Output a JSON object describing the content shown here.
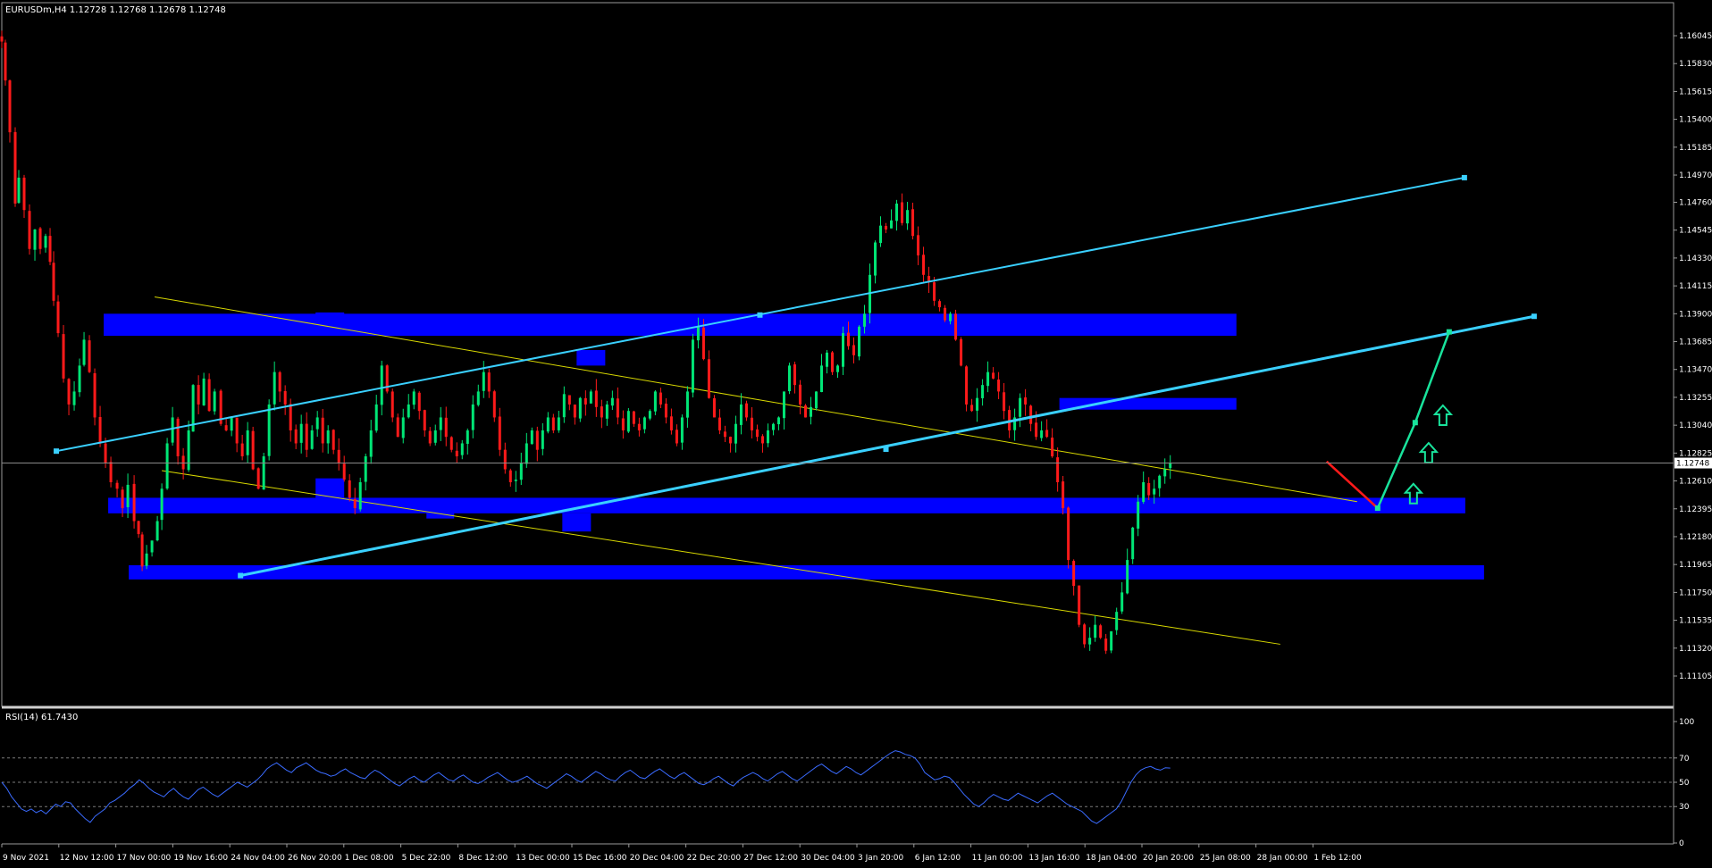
{
  "header": {
    "main_info": "EURUSDm,H4  1.12728 1.12768 1.12678 1.12748",
    "rsi_info": "RSI(14) 61.7430"
  },
  "colors": {
    "background": "#000000",
    "bull_candle": "#00e676",
    "bear_candle": "#ff1a1a",
    "zone": "#0000ff",
    "channel": "#3ad0ff",
    "trend_thin": "#d8d800",
    "forecast_up": "#19e39c",
    "forecast_down": "#ff1a1a",
    "rsi_line": "#3a6bff",
    "axis_text": "#ffffff",
    "grid": "#7a7a7a"
  },
  "chart_data": [
    {
      "type": "candlestick",
      "symbol": "EURUSDm",
      "timeframe": "H4",
      "ohlc_current": {
        "open": 1.12728,
        "high": 1.12768,
        "low": 1.12678,
        "close": 1.12748
      },
      "current_price_label": "1.12748",
      "y_ticks": [
        "1.16045",
        "1.15830",
        "1.15615",
        "1.15400",
        "1.15185",
        "1.14970",
        "1.14760",
        "1.14545",
        "1.14330",
        "1.14115",
        "1.13900",
        "1.13685",
        "1.13470",
        "1.13255",
        "1.13040",
        "1.12825",
        "1.12610",
        "1.12395",
        "1.12180",
        "1.11965",
        "1.11750",
        "1.11535",
        "1.11320",
        "1.11105"
      ],
      "ylim": [
        1.11105,
        1.16045
      ],
      "x_ticks": [
        "9 Nov 2021",
        "12 Nov 12:00",
        "17 Nov 00:00",
        "19 Nov 16:00",
        "24 Nov 04:00",
        "26 Nov 20:00",
        "1 Dec 08:00",
        "5 Dec 22:00",
        "8 Dec 12:00",
        "13 Dec 00:00",
        "15 Dec 16:00",
        "20 Dec 04:00",
        "22 Dec 20:00",
        "27 Dec 12:00",
        "30 Dec 04:00",
        "3 Jan 20:00",
        "6 Jan 12:00",
        "11 Jan 00:00",
        "13 Jan 16:00",
        "18 Jan 04:00",
        "20 Jan 20:00",
        "25 Jan 08:00",
        "28 Jan 00:00",
        "1 Feb 12:00"
      ],
      "close_path": [
        [
          0,
          1.16
        ],
        [
          4,
          1.157
        ],
        [
          9,
          1.153
        ],
        [
          15,
          1.1475
        ],
        [
          19,
          1.1495
        ],
        [
          25,
          1.147
        ],
        [
          31,
          1.144
        ],
        [
          37,
          1.1455
        ],
        [
          43,
          1.144
        ],
        [
          49,
          1.145
        ],
        [
          54,
          1.143
        ],
        [
          58,
          1.14
        ],
        [
          63,
          1.1375
        ],
        [
          69,
          1.134
        ],
        [
          75,
          1.132
        ],
        [
          81,
          1.133
        ],
        [
          87,
          1.135
        ],
        [
          92,
          1.137
        ],
        [
          98,
          1.1345
        ],
        [
          104,
          1.131
        ],
        [
          110,
          1.129
        ],
        [
          116,
          1.1275
        ],
        [
          122,
          1.126
        ],
        [
          129,
          1.1255
        ],
        [
          135,
          1.124
        ],
        [
          141,
          1.1258
        ],
        [
          148,
          1.123
        ],
        [
          153,
          1.122
        ],
        [
          157,
          1.1195
        ],
        [
          162,
          1.1205
        ],
        [
          168,
          1.1215
        ],
        [
          174,
          1.123
        ],
        [
          179,
          1.1255
        ],
        [
          185,
          1.129
        ],
        [
          191,
          1.131
        ],
        [
          197,
          1.128
        ],
        [
          203,
          1.127
        ],
        [
          209,
          1.13
        ],
        [
          214,
          1.1335
        ],
        [
          220,
          1.132
        ],
        [
          226,
          1.134
        ],
        [
          232,
          1.1315
        ],
        [
          238,
          1.133
        ],
        [
          245,
          1.1305
        ],
        [
          251,
          1.13
        ],
        [
          257,
          1.131
        ],
        [
          263,
          1.129
        ],
        [
          269,
          1.128
        ],
        [
          275,
          1.13
        ],
        [
          281,
          1.127
        ],
        [
          287,
          1.1255
        ],
        [
          293,
          1.128
        ],
        [
          299,
          1.132
        ],
        [
          305,
          1.1345
        ],
        [
          311,
          1.133
        ],
        [
          317,
          1.132
        ],
        [
          323,
          1.13
        ],
        [
          329,
          1.129
        ],
        [
          335,
          1.1305
        ],
        [
          341,
          1.1285
        ],
        [
          347,
          1.13
        ],
        [
          353,
          1.131
        ],
        [
          359,
          1.129
        ],
        [
          365,
          1.13
        ],
        [
          371,
          1.1285
        ],
        [
          377,
          1.1275
        ],
        [
          383,
          1.1262
        ],
        [
          389,
          1.1248
        ],
        [
          395,
          1.124
        ],
        [
          401,
          1.126
        ],
        [
          407,
          1.128
        ],
        [
          413,
          1.13
        ],
        [
          419,
          1.132
        ],
        [
          425,
          1.135
        ],
        [
          431,
          1.133
        ],
        [
          437,
          1.131
        ],
        [
          443,
          1.1295
        ],
        [
          449,
          1.131
        ],
        [
          455,
          1.132
        ],
        [
          461,
          1.133
        ],
        [
          467,
          1.1315
        ],
        [
          473,
          1.13
        ],
        [
          479,
          1.129
        ],
        [
          485,
          1.13
        ],
        [
          491,
          1.131
        ],
        [
          497,
          1.1295
        ],
        [
          503,
          1.1285
        ],
        [
          509,
          1.128
        ],
        [
          515,
          1.129
        ],
        [
          521,
          1.13
        ],
        [
          527,
          1.132
        ],
        [
          533,
          1.133
        ],
        [
          539,
          1.1345
        ],
        [
          545,
          1.133
        ],
        [
          551,
          1.131
        ],
        [
          557,
          1.1285
        ],
        [
          563,
          1.127
        ],
        [
          569,
          1.126
        ],
        [
          575,
          1.1262
        ],
        [
          581,
          1.1275
        ],
        [
          587,
          1.129
        ],
        [
          593,
          1.13
        ],
        [
          599,
          1.1285
        ],
        [
          605,
          1.13
        ],
        [
          611,
          1.131
        ],
        [
          617,
          1.13
        ],
        [
          623,
          1.131
        ],
        [
          629,
          1.1328
        ],
        [
          635,
          1.132
        ],
        [
          641,
          1.131
        ],
        [
          647,
          1.1325
        ],
        [
          653,
          1.132
        ],
        [
          659,
          1.133
        ],
        [
          665,
          1.1318
        ],
        [
          671,
          1.131
        ],
        [
          677,
          1.132
        ],
        [
          683,
          1.1325
        ],
        [
          689,
          1.131
        ],
        [
          695,
          1.13
        ],
        [
          701,
          1.1315
        ],
        [
          707,
          1.1305
        ],
        [
          713,
          1.13
        ],
        [
          719,
          1.131
        ],
        [
          725,
          1.1315
        ],
        [
          731,
          1.133
        ],
        [
          737,
          1.132
        ],
        [
          743,
          1.131
        ],
        [
          749,
          1.13
        ],
        [
          755,
          1.129
        ],
        [
          761,
          1.131
        ],
        [
          767,
          1.133
        ],
        [
          773,
          1.137
        ],
        [
          779,
          1.138
        ],
        [
          785,
          1.1355
        ],
        [
          791,
          1.1325
        ],
        [
          797,
          1.131
        ],
        [
          803,
          1.13
        ],
        [
          809,
          1.1295
        ],
        [
          815,
          1.129
        ],
        [
          821,
          1.1305
        ],
        [
          827,
          1.132
        ],
        [
          833,
          1.131
        ],
        [
          839,
          1.13
        ],
        [
          845,
          1.1295
        ],
        [
          851,
          1.129
        ],
        [
          857,
          1.13
        ],
        [
          863,
          1.1305
        ],
        [
          869,
          1.131
        ],
        [
          875,
          1.133
        ],
        [
          881,
          1.135
        ],
        [
          887,
          1.1335
        ],
        [
          893,
          1.132
        ],
        [
          899,
          1.131
        ],
        [
          905,
          1.1318
        ],
        [
          911,
          1.133
        ],
        [
          917,
          1.135
        ],
        [
          923,
          1.136
        ],
        [
          929,
          1.1345
        ],
        [
          935,
          1.135
        ],
        [
          941,
          1.1375
        ],
        [
          947,
          1.1365
        ],
        [
          953,
          1.1358
        ],
        [
          959,
          1.138
        ],
        [
          965,
          1.139
        ],
        [
          971,
          1.142
        ],
        [
          977,
          1.1445
        ],
        [
          983,
          1.1458
        ],
        [
          989,
          1.1455
        ],
        [
          995,
          1.1462
        ],
        [
          1001,
          1.1475
        ],
        [
          1007,
          1.146
        ],
        [
          1013,
          1.147
        ],
        [
          1019,
          1.145
        ],
        [
          1025,
          1.1435
        ],
        [
          1031,
          1.142
        ],
        [
          1037,
          1.1415
        ],
        [
          1043,
          1.14
        ],
        [
          1049,
          1.1395
        ],
        [
          1055,
          1.1385
        ],
        [
          1061,
          1.139
        ],
        [
          1067,
          1.137
        ],
        [
          1073,
          1.135
        ],
        [
          1079,
          1.132
        ],
        [
          1085,
          1.1315
        ],
        [
          1091,
          1.1325
        ],
        [
          1097,
          1.1335
        ],
        [
          1103,
          1.1345
        ],
        [
          1109,
          1.134
        ],
        [
          1115,
          1.133
        ],
        [
          1121,
          1.1315
        ],
        [
          1127,
          1.13
        ],
        [
          1133,
          1.131
        ],
        [
          1139,
          1.1325
        ],
        [
          1145,
          1.132
        ],
        [
          1151,
          1.1305
        ],
        [
          1157,
          1.1295
        ],
        [
          1163,
          1.13
        ],
        [
          1169,
          1.1295
        ],
        [
          1175,
          1.128
        ],
        [
          1181,
          1.126
        ],
        [
          1187,
          1.124
        ],
        [
          1193,
          1.12
        ],
        [
          1199,
          1.118
        ],
        [
          1205,
          1.115
        ],
        [
          1211,
          1.1135
        ],
        [
          1217,
          1.114
        ],
        [
          1223,
          1.115
        ],
        [
          1229,
          1.114
        ],
        [
          1235,
          1.113
        ],
        [
          1241,
          1.1145
        ],
        [
          1247,
          1.116
        ],
        [
          1253,
          1.1175
        ],
        [
          1259,
          1.12
        ],
        [
          1265,
          1.1225
        ],
        [
          1271,
          1.1245
        ],
        [
          1277,
          1.126
        ],
        [
          1283,
          1.125
        ],
        [
          1289,
          1.1255
        ],
        [
          1295,
          1.1265
        ],
        [
          1301,
          1.127
        ],
        [
          1307,
          1.12748
        ]
      ],
      "zones": [
        {
          "x0": 114,
          "x1": 1381,
          "y0": 1.1373,
          "y1": 1.139
        },
        {
          "x0": 1183,
          "x1": 1381,
          "y0": 1.1316,
          "y1": 1.1325
        },
        {
          "x0": 119,
          "x1": 1637,
          "y0": 1.1236,
          "y1": 1.1248
        },
        {
          "x0": 142,
          "x1": 1658,
          "y0": 1.1185,
          "y1": 1.1196
        },
        {
          "x0": 351,
          "x1": 383,
          "y0": 1.13835,
          "y1": 1.1391
        },
        {
          "x0": 643,
          "x1": 675,
          "y0": 1.135,
          "y1": 1.1362
        },
        {
          "x0": 351,
          "x1": 383,
          "y0": 1.1248,
          "y1": 1.1263
        },
        {
          "x0": 475,
          "x1": 506,
          "y0": 1.1232,
          "y1": 1.1242
        },
        {
          "x0": 627,
          "x1": 659,
          "y0": 1.1222,
          "y1": 1.1236
        }
      ],
      "channel_lines": [
        {
          "x0": 61,
          "y0": 1.1284,
          "x1": 1636,
          "y1": 1.1495,
          "points": [
            [
              61,
              1.1284
            ],
            [
              848,
              1.1389
            ],
            [
              1636,
              1.1495
            ]
          ]
        },
        {
          "x0": 267,
          "y0": 1.1188,
          "x1": 1714,
          "y1": 1.1388,
          "points": [
            [
              267,
              1.1188
            ],
            [
              989,
              1.12855
            ],
            [
              1714,
              1.1388
            ]
          ],
          "thick": true
        }
      ],
      "thin_lines": [
        {
          "x0": 171,
          "y0": 1.1403,
          "x1": 1516,
          "y1": 1.1245
        },
        {
          "x0": 179,
          "y0": 1.1269,
          "x1": 1430,
          "y1": 1.1135
        }
      ],
      "forecast": [
        {
          "type": "down",
          "points": [
            [
              1482,
              1.1276
            ],
            [
              1539,
              1.124
            ]
          ]
        },
        {
          "type": "up",
          "points": [
            [
              1539,
              1.124
            ],
            [
              1581,
              1.1306
            ],
            [
              1619,
              1.1376
            ]
          ]
        }
      ],
      "arrows": [
        {
          "x": 1579,
          "y": 1.12505
        },
        {
          "x": 1596,
          "y": 1.1282
        },
        {
          "x": 1612,
          "y": 1.1311
        }
      ]
    },
    {
      "type": "line",
      "name": "RSI(14)",
      "current_value": 61.743,
      "y_ticks": [
        "100",
        "70",
        "50",
        "30",
        "0"
      ],
      "ylim": [
        0,
        100
      ],
      "levels": [
        70,
        50,
        30
      ],
      "values": [
        50,
        45,
        38,
        33,
        28,
        26,
        28,
        25,
        27,
        24,
        28,
        32,
        30,
        34,
        33,
        28,
        24,
        20,
        17,
        22,
        25,
        28,
        33,
        35,
        38,
        41,
        45,
        48,
        52,
        49,
        45,
        42,
        40,
        38,
        42,
        45,
        41,
        38,
        36,
        40,
        44,
        46,
        43,
        40,
        38,
        41,
        44,
        47,
        50,
        48,
        46,
        49,
        52,
        56,
        61,
        64,
        66,
        63,
        60,
        58,
        62,
        64,
        66,
        63,
        60,
        58,
        57,
        55,
        56,
        59,
        61,
        58,
        56,
        54,
        53,
        57,
        60,
        58,
        55,
        52,
        49,
        47,
        50,
        53,
        55,
        52,
        50,
        53,
        56,
        58,
        55,
        52,
        51,
        54,
        56,
        53,
        50,
        49,
        51,
        54,
        56,
        58,
        55,
        52,
        50,
        51,
        53,
        55,
        52,
        49,
        47,
        45,
        48,
        51,
        54,
        57,
        55,
        52,
        50,
        53,
        56,
        59,
        57,
        54,
        52,
        51,
        55,
        58,
        60,
        57,
        54,
        53,
        56,
        59,
        61,
        58,
        55,
        53,
        56,
        58,
        55,
        52,
        49,
        48,
        50,
        53,
        55,
        52,
        49,
        47,
        51,
        54,
        56,
        58,
        56,
        53,
        51,
        54,
        57,
        59,
        56,
        53,
        51,
        54,
        57,
        60,
        63,
        65,
        62,
        59,
        57,
        60,
        63,
        61,
        58,
        56,
        59,
        62,
        65,
        68,
        71,
        74,
        76,
        75,
        73,
        72,
        70,
        65,
        58,
        55,
        52,
        53,
        55,
        54,
        50,
        45,
        40,
        36,
        32,
        30,
        33,
        37,
        40,
        38,
        36,
        35,
        38,
        41,
        39,
        37,
        35,
        33,
        36,
        39,
        41,
        38,
        35,
        32,
        30,
        28,
        26,
        22,
        18,
        16,
        19,
        22,
        25,
        28,
        34,
        42,
        50,
        56,
        60,
        62,
        63,
        61,
        60,
        62,
        61.7
      ]
    }
  ]
}
